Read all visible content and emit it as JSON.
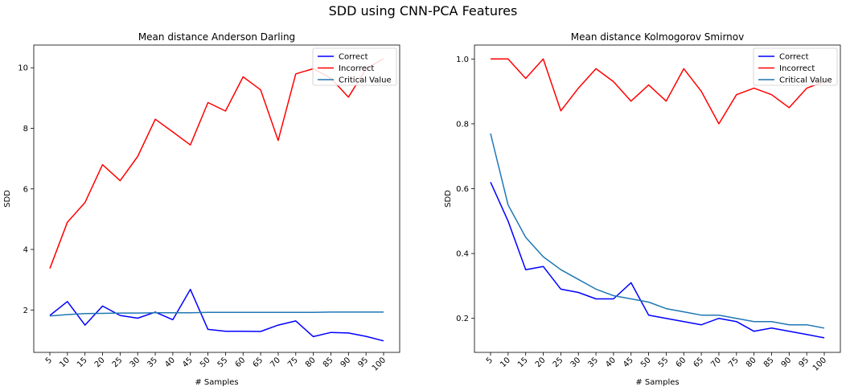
{
  "figure": {
    "suptitle": "SDD using CNN-PCA Features"
  },
  "colors": {
    "correct": "#0000ff",
    "incorrect": "#ff0000",
    "critical": "#1f77b4"
  },
  "chart_data": [
    {
      "type": "line",
      "title": "Mean distance Anderson Darling",
      "xlabel": "# Samples",
      "ylabel": "SDD",
      "categories": [
        "5",
        "10",
        "15",
        "20",
        "25",
        "30",
        "35",
        "40",
        "45",
        "50",
        "55",
        "60",
        "65",
        "70",
        "75",
        "80",
        "85",
        "90",
        "95",
        "100"
      ],
      "ylim": [
        0.6,
        10.75
      ],
      "yticks": [
        2,
        4,
        6,
        8,
        10
      ],
      "legend_position": "top-right",
      "grid": false,
      "series": [
        {
          "name": "Correct",
          "color": "#0000ff",
          "values": [
            1.82,
            2.28,
            1.5,
            2.13,
            1.82,
            1.73,
            1.93,
            1.68,
            2.68,
            1.36,
            1.3,
            1.3,
            1.29,
            1.5,
            1.64,
            1.12,
            1.26,
            1.24,
            1.13,
            0.98
          ]
        },
        {
          "name": "Incorrect",
          "color": "#ff0000",
          "values": [
            3.37,
            4.9,
            5.55,
            6.8,
            6.27,
            7.07,
            8.3,
            7.88,
            7.45,
            8.85,
            8.57,
            9.7,
            9.27,
            7.6,
            9.8,
            9.97,
            9.65,
            9.03,
            9.97,
            10.3
          ]
        },
        {
          "name": "Critical Value",
          "color": "#1f77b4",
          "values": [
            1.8,
            1.85,
            1.88,
            1.89,
            1.9,
            1.9,
            1.91,
            1.91,
            1.91,
            1.92,
            1.92,
            1.92,
            1.92,
            1.92,
            1.92,
            1.92,
            1.93,
            1.93,
            1.93,
            1.93
          ]
        }
      ]
    },
    {
      "type": "line",
      "title": "Mean distance Kolmogorov Smirnov",
      "xlabel": "# Samples",
      "ylabel": "SDD",
      "categories": [
        "5",
        "10",
        "15",
        "20",
        "25",
        "30",
        "35",
        "40",
        "45",
        "50",
        "55",
        "60",
        "65",
        "70",
        "75",
        "80",
        "85",
        "90",
        "95",
        "100"
      ],
      "ylim": [
        0.095,
        1.043
      ],
      "yticks": [
        0.2,
        0.4,
        0.6,
        0.8,
        1.0
      ],
      "legend_position": "top-right",
      "grid": false,
      "series": [
        {
          "name": "Correct",
          "color": "#0000ff",
          "values": [
            0.62,
            0.5,
            0.35,
            0.36,
            0.29,
            0.28,
            0.26,
            0.26,
            0.31,
            0.21,
            0.2,
            0.19,
            0.18,
            0.2,
            0.19,
            0.16,
            0.17,
            0.16,
            0.15,
            0.14
          ]
        },
        {
          "name": "Incorrect",
          "color": "#ff0000",
          "values": [
            1.0,
            1.0,
            0.94,
            1.0,
            0.84,
            0.91,
            0.97,
            0.93,
            0.87,
            0.92,
            0.87,
            0.97,
            0.9,
            0.8,
            0.89,
            0.91,
            0.89,
            0.85,
            0.91,
            0.93
          ]
        },
        {
          "name": "Critical Value",
          "color": "#1f77b4",
          "values": [
            0.77,
            0.55,
            0.45,
            0.39,
            0.35,
            0.32,
            0.29,
            0.27,
            0.26,
            0.25,
            0.23,
            0.22,
            0.21,
            0.21,
            0.2,
            0.19,
            0.19,
            0.18,
            0.18,
            0.17
          ]
        }
      ]
    }
  ]
}
